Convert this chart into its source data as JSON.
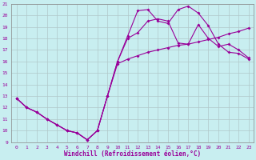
{
  "xlabel": "Windchill (Refroidissement éolien,°C)",
  "bg_color": "#c8eef0",
  "grid_color": "#b0c8c8",
  "line_color": "#990099",
  "spine_color": "#888888",
  "xlim": [
    -0.5,
    23.5
  ],
  "ylim": [
    9,
    21
  ],
  "xticks": [
    0,
    1,
    2,
    3,
    4,
    5,
    6,
    7,
    8,
    9,
    10,
    11,
    12,
    13,
    14,
    15,
    16,
    17,
    18,
    19,
    20,
    21,
    22,
    23
  ],
  "yticks": [
    9,
    10,
    11,
    12,
    13,
    14,
    15,
    16,
    17,
    18,
    19,
    20,
    21
  ],
  "line1_x": [
    0,
    1,
    2,
    3,
    4,
    5,
    6,
    7,
    8,
    9,
    10,
    11,
    12,
    13,
    14,
    15,
    16,
    17,
    18,
    19,
    20,
    21,
    22,
    23
  ],
  "line1_y": [
    12.8,
    12.0,
    11.6,
    11.0,
    10.5,
    10.0,
    9.8,
    9.2,
    10.0,
    13.0,
    15.8,
    16.2,
    16.5,
    16.8,
    17.0,
    17.2,
    17.4,
    17.5,
    17.7,
    17.9,
    18.1,
    18.4,
    18.6,
    18.9
  ],
  "line2_x": [
    0,
    1,
    2,
    3,
    4,
    5,
    6,
    7,
    8,
    9,
    10,
    11,
    12,
    13,
    14,
    15,
    16,
    17,
    18,
    19,
    20,
    21,
    22,
    23
  ],
  "line2_y": [
    12.8,
    12.0,
    11.6,
    11.0,
    10.5,
    10.0,
    9.8,
    9.2,
    10.0,
    13.0,
    16.0,
    18.2,
    20.4,
    20.5,
    19.5,
    19.3,
    20.5,
    20.8,
    20.2,
    19.1,
    17.5,
    16.8,
    16.7,
    16.2
  ],
  "line3_x": [
    0,
    1,
    2,
    3,
    4,
    5,
    6,
    7,
    8,
    9,
    10,
    11,
    12,
    13,
    14,
    15,
    16,
    17,
    18,
    19,
    20,
    21,
    22,
    23
  ],
  "line3_y": [
    12.8,
    12.0,
    11.6,
    11.0,
    10.5,
    10.0,
    9.8,
    9.2,
    10.0,
    13.0,
    16.0,
    18.0,
    18.5,
    19.5,
    19.7,
    19.5,
    17.6,
    17.5,
    19.2,
    18.0,
    17.3,
    17.5,
    17.0,
    16.3
  ],
  "xlabel_fontsize": 5.5,
  "tick_fontsize": 4.5,
  "linewidth": 0.8,
  "markersize": 2.0
}
